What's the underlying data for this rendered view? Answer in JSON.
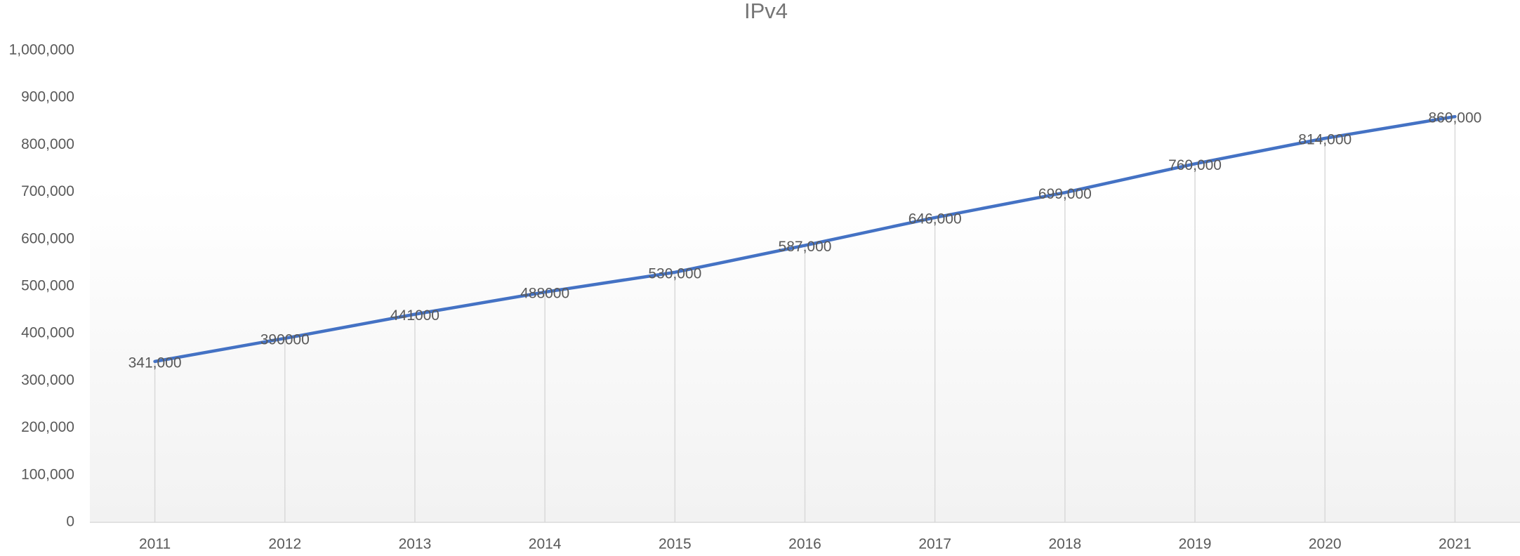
{
  "chart_data": {
    "type": "line",
    "title": "IPv4",
    "categories": [
      "2011",
      "2012",
      "2013",
      "2014",
      "2015",
      "2016",
      "2017",
      "2018",
      "2019",
      "2020",
      "2021"
    ],
    "series": [
      {
        "name": "IPv4",
        "color": "#4472c4",
        "values": [
          341000,
          390000,
          441000,
          488000,
          530000,
          587000,
          646000,
          699000,
          760000,
          814000,
          860000
        ],
        "value_labels": [
          "341,000",
          "390000",
          "441000",
          "488000",
          "530,000",
          "587,000",
          "646,000",
          "699,000",
          "760,000",
          "814,000",
          "860,000"
        ]
      }
    ],
    "ylim": [
      0,
      1000000
    ],
    "yticks": [
      0,
      {
        "value": 100000,
        "label": "100,000"
      },
      {
        "value": 200000,
        "label": "200,000"
      },
      {
        "value": 300000,
        "label": "300,000"
      },
      {
        "value": 400000,
        "label": "400,000"
      },
      {
        "value": 500000,
        "label": "500,000"
      },
      {
        "value": 600000,
        "label": "600,000"
      },
      {
        "value": 700000,
        "label": "700,000"
      },
      {
        "value": 800000,
        "label": "800,000"
      },
      {
        "value": 900000,
        "label": "900,000"
      },
      {
        "value": 1000000,
        "label": "1,000,000"
      }
    ],
    "drop_lines": true
  }
}
